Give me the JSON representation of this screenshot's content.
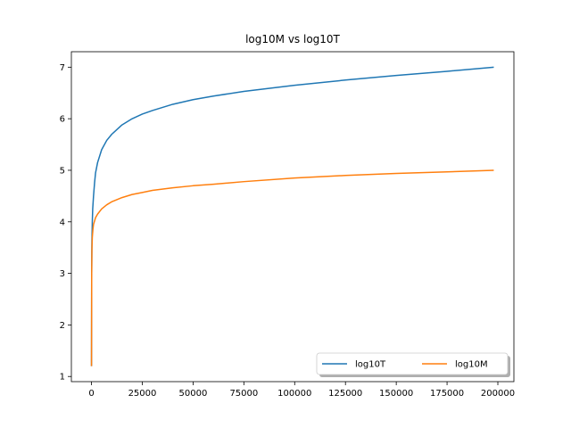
{
  "chart_data": {
    "type": "line",
    "title": "log10M vs log10T",
    "xlabel": "",
    "ylabel": "",
    "xlim": [
      -9900,
      207900
    ],
    "ylim": [
      0.9,
      7.3
    ],
    "xticks": [
      0,
      25000,
      50000,
      75000,
      100000,
      125000,
      150000,
      175000,
      200000
    ],
    "xtick_labels": [
      "0",
      "25000",
      "50000",
      "75000",
      "100000",
      "125000",
      "150000",
      "175000",
      "200000"
    ],
    "yticks": [
      1,
      2,
      3,
      4,
      5,
      6,
      7
    ],
    "ytick_labels": [
      "1",
      "2",
      "3",
      "4",
      "5",
      "6",
      "7"
    ],
    "grid": false,
    "legend": {
      "placement": "lower-right",
      "columns": 2
    },
    "series": [
      {
        "name": "log10T",
        "color": "#1f77b4",
        "points": [
          [
            0,
            1.2
          ],
          [
            100,
            3.0
          ],
          [
            200,
            3.6
          ],
          [
            400,
            4.0
          ],
          [
            600,
            4.25
          ],
          [
            1000,
            4.5
          ],
          [
            1500,
            4.75
          ],
          [
            2000,
            4.95
          ],
          [
            3000,
            5.15
          ],
          [
            5000,
            5.4
          ],
          [
            7500,
            5.58
          ],
          [
            10000,
            5.7
          ],
          [
            15000,
            5.88
          ],
          [
            20000,
            6.0
          ],
          [
            25000,
            6.09
          ],
          [
            30000,
            6.16
          ],
          [
            40000,
            6.28
          ],
          [
            50000,
            6.37
          ],
          [
            60000,
            6.44
          ],
          [
            75000,
            6.53
          ],
          [
            100000,
            6.65
          ],
          [
            125000,
            6.75
          ],
          [
            150000,
            6.84
          ],
          [
            175000,
            6.92
          ],
          [
            198000,
            7.0
          ]
        ]
      },
      {
        "name": "log10M",
        "color": "#ff7f0e",
        "points": [
          [
            0,
            1.2
          ],
          [
            100,
            3.0
          ],
          [
            200,
            3.45
          ],
          [
            400,
            3.7
          ],
          [
            700,
            3.85
          ],
          [
            1000,
            3.95
          ],
          [
            2000,
            4.08
          ],
          [
            3000,
            4.15
          ],
          [
            5000,
            4.25
          ],
          [
            7500,
            4.33
          ],
          [
            10000,
            4.39
          ],
          [
            15000,
            4.47
          ],
          [
            20000,
            4.53
          ],
          [
            25000,
            4.57
          ],
          [
            30000,
            4.61
          ],
          [
            40000,
            4.66
          ],
          [
            50000,
            4.7
          ],
          [
            60000,
            4.73
          ],
          [
            75000,
            4.78
          ],
          [
            100000,
            4.85
          ],
          [
            125000,
            4.9
          ],
          [
            150000,
            4.94
          ],
          [
            175000,
            4.97
          ],
          [
            198000,
            5.0
          ]
        ]
      }
    ]
  }
}
